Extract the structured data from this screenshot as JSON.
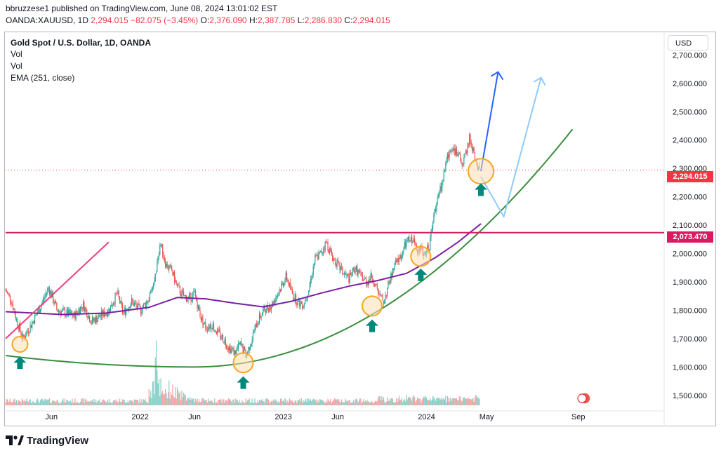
{
  "header": {
    "published_line": "bbruzzese1 published on TradingView.com, June 08, 2024 13:01:02 EST",
    "symbol": "OANDA:XAUUSD, 1D",
    "last": "2,294.015",
    "change": "−82.075 (−3.45%)",
    "open_label": "O:",
    "open": "2,376.090",
    "high_label": "H:",
    "high": "2,387.785",
    "low_label": "L:",
    "low": "2,286.830",
    "close_label": "C:",
    "close": "2,294.015"
  },
  "legend": {
    "title": "Gold Spot / U.S. Dollar, 1D, OANDA",
    "lines": [
      "Vol",
      "Vol",
      "EMA (251, close)"
    ]
  },
  "currency_button": "USD",
  "price_tags": {
    "last": "2,294.015",
    "level": "2,073.470"
  },
  "brand": {
    "name": "TradingView"
  },
  "colors": {
    "up": "#26a69a",
    "down": "#ef5350",
    "ema": "#7b1fa2",
    "curve": "#388e3c",
    "trend": "#ec407a",
    "level": "#d81b60",
    "arrow_dark": "#2962ff",
    "arrow_light": "#90caf9",
    "marker": "#f5a623",
    "marker_arrow": "#00897b"
  },
  "chart_data": {
    "type": "line",
    "x_axis": {
      "labels": [
        "Jun",
        "2022",
        "Jun",
        "2023",
        "Jun",
        "2024",
        "May",
        "Sep"
      ],
      "positions_t": [
        0.16,
        0.47,
        0.66,
        0.97,
        1.16,
        1.47,
        1.68,
        2.0
      ]
    },
    "y_axis": {
      "ticks": [
        1500,
        1600,
        1700,
        1800,
        1900,
        2000,
        2100,
        2200,
        2300,
        2400,
        2500,
        2600,
        2700
      ],
      "tick_labels": [
        "1,500.000",
        "1,600.000",
        "1,700.000",
        "1,800.000",
        "1,900.000",
        "2,000.000",
        "2,100.000",
        "2,200.000",
        "2,300.000",
        "2,400.000",
        "2,500.000",
        "2,600.000",
        "2,700.000"
      ],
      "range": [
        1455,
        2780
      ]
    },
    "time_range": [
      0.0,
      2.3
    ],
    "price_anchors": [
      [
        0.0,
        1870
      ],
      [
        0.02,
        1835
      ],
      [
        0.04,
        1760
      ],
      [
        0.06,
        1700
      ],
      [
        0.09,
        1750
      ],
      [
        0.12,
        1810
      ],
      [
        0.15,
        1880
      ],
      [
        0.18,
        1800
      ],
      [
        0.21,
        1790
      ],
      [
        0.24,
        1780
      ],
      [
        0.27,
        1820
      ],
      [
        0.3,
        1760
      ],
      [
        0.33,
        1780
      ],
      [
        0.36,
        1800
      ],
      [
        0.39,
        1860
      ],
      [
        0.41,
        1790
      ],
      [
        0.44,
        1830
      ],
      [
        0.47,
        1800
      ],
      [
        0.5,
        1840
      ],
      [
        0.52,
        1900
      ],
      [
        0.54,
        2040
      ],
      [
        0.56,
        1960
      ],
      [
        0.58,
        1940
      ],
      [
        0.6,
        1880
      ],
      [
        0.62,
        1850
      ],
      [
        0.64,
        1840
      ],
      [
        0.66,
        1860
      ],
      [
        0.68,
        1780
      ],
      [
        0.7,
        1740
      ],
      [
        0.72,
        1750
      ],
      [
        0.74,
        1720
      ],
      [
        0.76,
        1700
      ],
      [
        0.78,
        1670
      ],
      [
        0.8,
        1650
      ],
      [
        0.82,
        1680
      ],
      [
        0.84,
        1640
      ],
      [
        0.86,
        1700
      ],
      [
        0.88,
        1760
      ],
      [
        0.9,
        1800
      ],
      [
        0.93,
        1820
      ],
      [
        0.95,
        1860
      ],
      [
        0.98,
        1920
      ],
      [
        1.0,
        1860
      ],
      [
        1.02,
        1830
      ],
      [
        1.04,
        1820
      ],
      [
        1.06,
        1880
      ],
      [
        1.08,
        1980
      ],
      [
        1.1,
        2000
      ],
      [
        1.12,
        2040
      ],
      [
        1.14,
        1990
      ],
      [
        1.16,
        1960
      ],
      [
        1.18,
        1930
      ],
      [
        1.2,
        1910
      ],
      [
        1.22,
        1950
      ],
      [
        1.24,
        1920
      ],
      [
        1.26,
        1900
      ],
      [
        1.28,
        1920
      ],
      [
        1.3,
        1860
      ],
      [
        1.32,
        1830
      ],
      [
        1.34,
        1900
      ],
      [
        1.36,
        1960
      ],
      [
        1.38,
        1990
      ],
      [
        1.4,
        2040
      ],
      [
        1.42,
        2050
      ],
      [
        1.44,
        2020
      ],
      [
        1.46,
        2000
      ],
      [
        1.48,
        2030
      ],
      [
        1.5,
        2160
      ],
      [
        1.52,
        2230
      ],
      [
        1.54,
        2330
      ],
      [
        1.56,
        2380
      ],
      [
        1.58,
        2340
      ],
      [
        1.6,
        2320
      ],
      [
        1.62,
        2410
      ],
      [
        1.64,
        2330
      ],
      [
        1.655,
        2294
      ]
    ],
    "ema_251": [
      [
        0.0,
        1795
      ],
      [
        0.2,
        1785
      ],
      [
        0.35,
        1790
      ],
      [
        0.5,
        1810
      ],
      [
        0.6,
        1845
      ],
      [
        0.7,
        1840
      ],
      [
        0.8,
        1825
      ],
      [
        0.9,
        1812
      ],
      [
        1.0,
        1832
      ],
      [
        1.1,
        1860
      ],
      [
        1.2,
        1885
      ],
      [
        1.3,
        1905
      ],
      [
        1.4,
        1930
      ],
      [
        1.5,
        1985
      ],
      [
        1.58,
        2040
      ],
      [
        1.66,
        2105
      ]
    ],
    "annotations": {
      "horizontal_level": 2073.47,
      "last_price": 2294.015,
      "trendline": [
        [
          0.0,
          1700
        ],
        [
          0.36,
          2040
        ]
      ],
      "projection_dark": [
        [
          1.66,
          2290
        ],
        [
          1.72,
          2640
        ]
      ],
      "projection_light": [
        [
          1.66,
          2270
        ],
        [
          1.74,
          2130
        ],
        [
          1.87,
          2620
        ]
      ],
      "circles": [
        [
          0.05,
          1680
        ],
        [
          0.83,
          1615
        ],
        [
          1.28,
          1815
        ],
        [
          1.45,
          1990
        ],
        [
          1.66,
          2290
        ]
      ],
      "up_arrows": [
        [
          0.05,
          1615
        ],
        [
          0.83,
          1545
        ],
        [
          1.28,
          1745
        ],
        [
          1.45,
          1925
        ],
        [
          1.66,
          2225
        ]
      ]
    }
  }
}
